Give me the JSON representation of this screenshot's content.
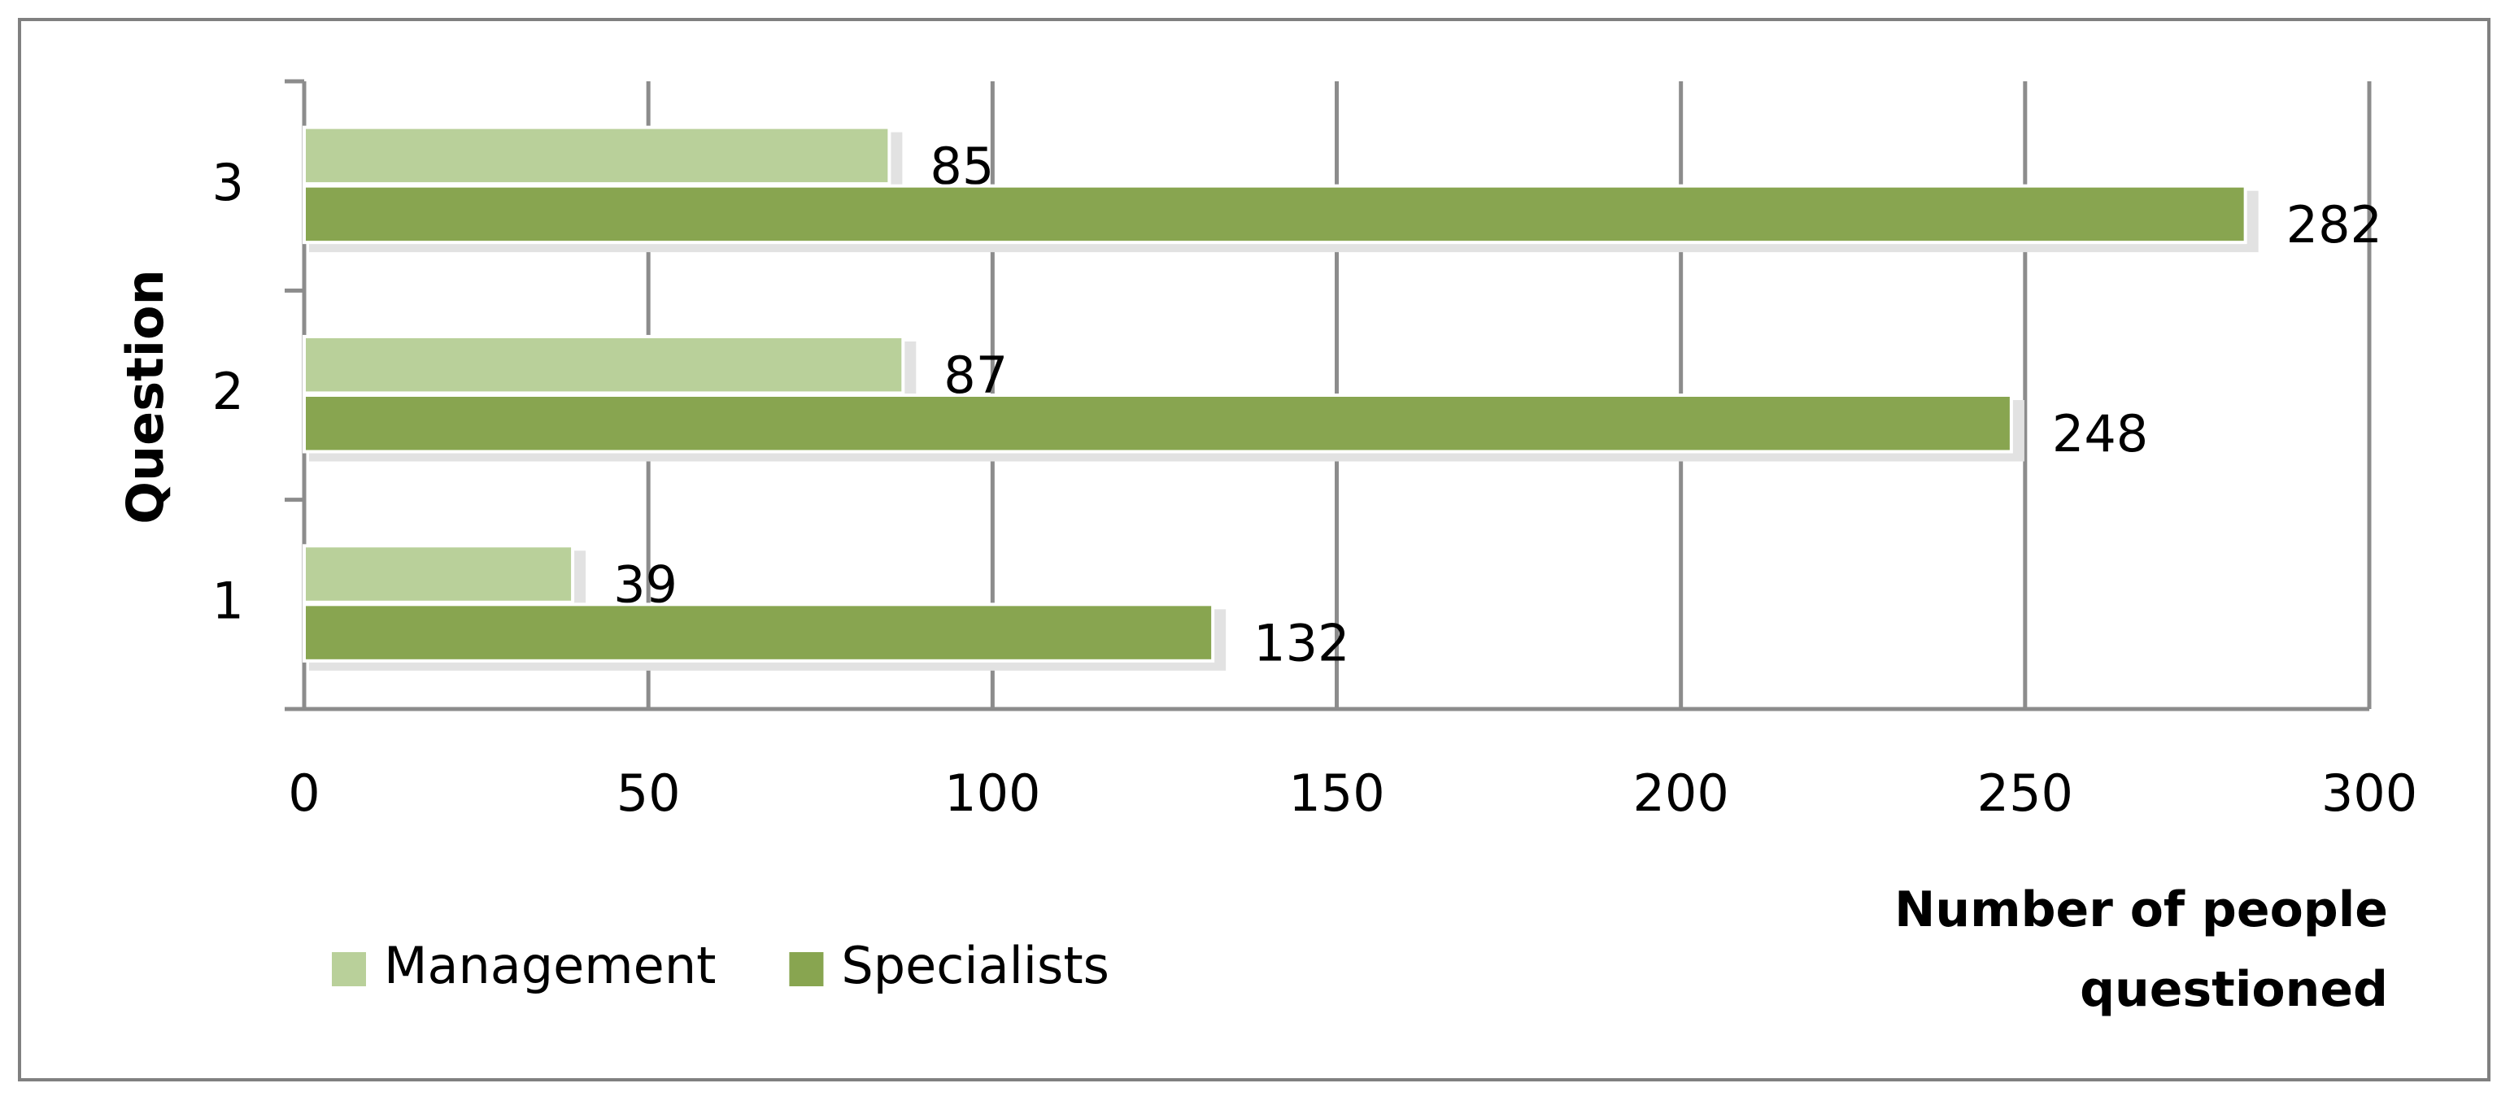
{
  "chart_data": {
    "type": "bar",
    "orientation": "horizontal",
    "y_label": "Question",
    "x_label": "Number of people questioned",
    "categories": [
      "1",
      "2",
      "3"
    ],
    "series": [
      {
        "name": "Management",
        "color": "#b9d09a",
        "values": [
          39,
          87,
          85
        ]
      },
      {
        "name": "Specialists",
        "color": "#88a550",
        "values": [
          132,
          248,
          282
        ]
      }
    ],
    "xlim": [
      0,
      300
    ],
    "xticks": [
      0,
      50,
      100,
      150,
      200,
      250,
      300
    ],
    "grid": true,
    "legend": "bottom-left"
  }
}
